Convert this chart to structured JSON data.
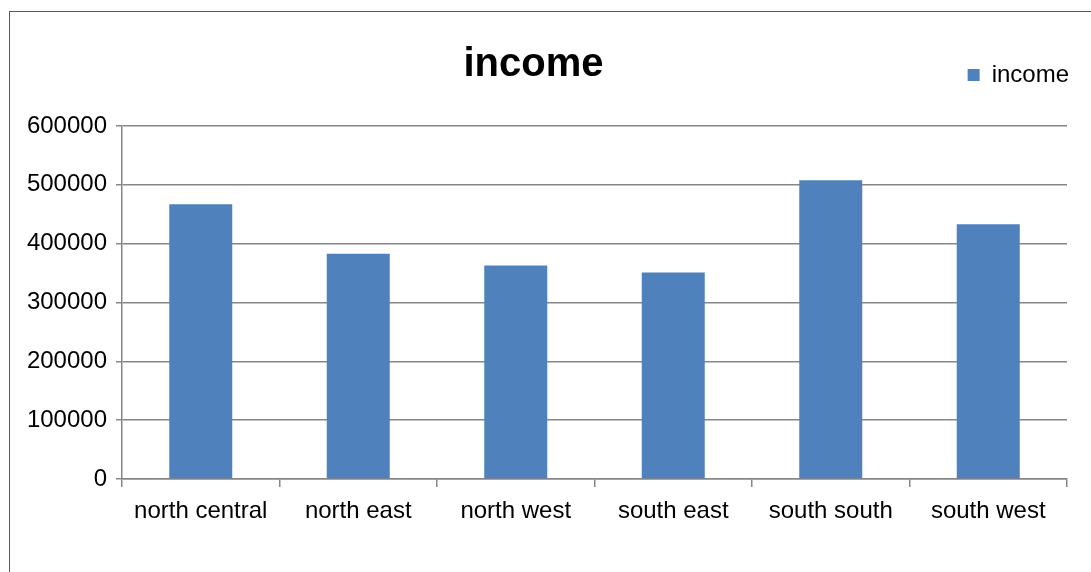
{
  "chart_data": {
    "type": "bar",
    "title": "income",
    "categories": [
      "north central",
      "north east",
      "north west",
      "south east",
      "south south",
      "south west"
    ],
    "series": [
      {
        "name": "income",
        "color": "#4f81bd",
        "values": [
          467000,
          383000,
          363000,
          351000,
          508000,
          433000
        ]
      }
    ],
    "ylim": [
      0,
      600000
    ],
    "yticks": [
      0,
      100000,
      200000,
      300000,
      400000,
      500000,
      600000
    ],
    "grid": "y",
    "legend": "top right"
  }
}
